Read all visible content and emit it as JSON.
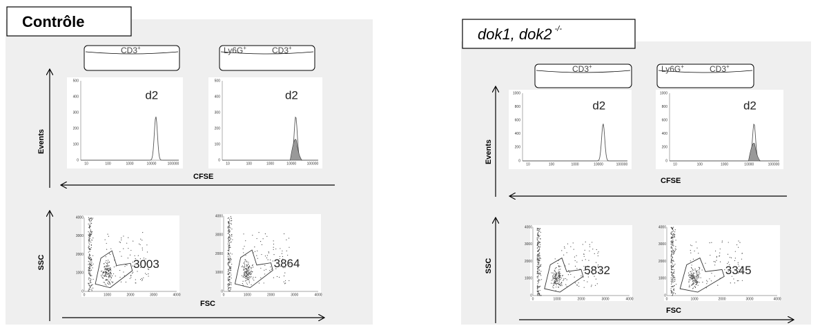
{
  "panels": [
    {
      "title": {
        "text": "Contrôle"
      },
      "gates": [
        [
          {
            "name": "CD3",
            "sup": "+"
          }
        ],
        [
          {
            "name": "Ly6G",
            "sup": "+"
          },
          {
            "name": "CD3",
            "sup": "+"
          }
        ]
      ],
      "histograms": [
        {
          "yticks": [
            0,
            100,
            200,
            300,
            400,
            500
          ],
          "xticks": [
            10,
            100,
            1000,
            10000,
            100000
          ],
          "peak_label": "d2"
        },
        {
          "yticks": [
            0,
            100,
            200,
            300,
            400,
            500
          ],
          "xticks": [
            10,
            100,
            1000,
            10000,
            100000
          ],
          "peak_label": "d2"
        }
      ],
      "hist_x_axis": "CFSE",
      "hist_y_axis": "Events",
      "scatters": [
        {
          "xticks": [
            0,
            1000,
            2000,
            3000,
            4000
          ],
          "yticks": [
            0,
            1000,
            2000,
            3000,
            4000
          ],
          "count": 3003
        },
        {
          "xticks": [
            0,
            1000,
            2000,
            3000,
            4000
          ],
          "yticks": [
            0,
            1000,
            2000,
            3000,
            4000
          ],
          "count": 3864
        }
      ],
      "scatter_x_axis": "FSC",
      "scatter_y_axis": "SSC"
    },
    {
      "title": {
        "text": "dok1, dok2",
        "sup": "-/-"
      },
      "gates": [
        [
          {
            "name": "CD3",
            "sup": "+"
          }
        ],
        [
          {
            "name": "Ly6G",
            "sup": "+"
          },
          {
            "name": "CD3",
            "sup": "+"
          }
        ]
      ],
      "histograms": [
        {
          "yticks": [
            0,
            200,
            400,
            600,
            800,
            1000
          ],
          "xticks": [
            10,
            100,
            1000,
            10000,
            100000
          ],
          "peak_label": "d2"
        },
        {
          "yticks": [
            0,
            200,
            400,
            600,
            800,
            1000
          ],
          "xticks": [
            10,
            100,
            1000,
            10000,
            100000
          ],
          "peak_label": "d2"
        }
      ],
      "hist_x_axis": "CFSE",
      "hist_y_axis": "Events",
      "scatters": [
        {
          "xticks": [
            0,
            1000,
            2000,
            3000,
            4000
          ],
          "yticks": [
            0,
            1000,
            2000,
            3000,
            4000
          ],
          "count": 5832
        },
        {
          "xticks": [
            0,
            1000,
            2000,
            3000,
            4000
          ],
          "yticks": [
            0,
            1000,
            2000,
            3000,
            4000
          ],
          "count": 3345
        }
      ],
      "scatter_x_axis": "FSC",
      "scatter_y_axis": "SSC"
    }
  ]
}
